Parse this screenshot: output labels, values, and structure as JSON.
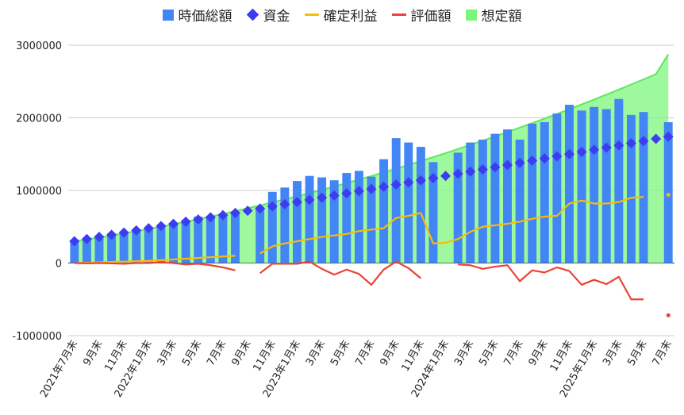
{
  "chart_data": {
    "type": "bar",
    "title": "",
    "xlabel": "",
    "ylabel": "",
    "ylim": [
      -1000000,
      3000000
    ],
    "yticks": [
      3000000,
      2000000,
      1000000,
      0,
      -1000000
    ],
    "y_tick_labels": [
      "3000000",
      "2000000",
      "1000000",
      "0",
      "-1000000"
    ],
    "grid": true,
    "legend_position": "top",
    "x_tick_labels": [
      "2021年7月末",
      "9月末",
      "11月末",
      "2022年1月末",
      "3月末",
      "5月末",
      "7月末",
      "9月末",
      "11月末",
      "2023年1月末",
      "3月末",
      "5月末",
      "7月末",
      "9月末",
      "11月末",
      "2024年1月末",
      "3月末",
      "5月末",
      "7月末",
      "9月末",
      "11月末",
      "2025年1月末",
      "3月末",
      "5月末",
      "7月末"
    ],
    "categories": [
      "2021-07",
      "2021-08",
      "2021-09",
      "2021-10",
      "2021-11",
      "2021-12",
      "2022-01",
      "2022-02",
      "2022-03",
      "2022-04",
      "2022-05",
      "2022-06",
      "2022-07",
      "2022-08",
      "2022-09",
      "2022-10",
      "2022-11",
      "2022-12",
      "2023-01",
      "2023-02",
      "2023-03",
      "2023-04",
      "2023-05",
      "2023-06",
      "2023-07",
      "2023-08",
      "2023-09",
      "2023-10",
      "2023-11",
      "2023-12",
      "2024-01",
      "2024-02",
      "2024-03",
      "2024-04",
      "2024-05",
      "2024-06",
      "2024-07",
      "2024-08",
      "2024-09",
      "2024-10",
      "2024-11",
      "2024-12",
      "2025-01",
      "2025-02",
      "2025-03",
      "2025-04",
      "2025-05",
      "2025-06",
      "2025-07"
    ],
    "series": [
      {
        "name": "時価総額",
        "kind": "bar",
        "color": "#4285f4",
        "values": [
          300000,
          330000,
          360000,
          380000,
          420000,
          450000,
          480000,
          510000,
          540000,
          590000,
          640000,
          650000,
          670000,
          690000,
          null,
          760000,
          980000,
          1040000,
          1130000,
          1200000,
          1180000,
          1140000,
          1240000,
          1270000,
          1190000,
          1430000,
          1720000,
          1660000,
          1600000,
          1390000,
          null,
          1520000,
          1660000,
          1700000,
          1780000,
          1840000,
          1700000,
          1920000,
          1940000,
          2060000,
          2180000,
          2100000,
          2150000,
          2120000,
          2260000,
          2040000,
          2080000,
          null,
          1940000
        ]
      },
      {
        "name": "資金",
        "kind": "scatter",
        "marker": "diamond",
        "color": "#3c3cf5",
        "values": [
          300000,
          330000,
          360000,
          390000,
          420000,
          450000,
          480000,
          510000,
          540000,
          570000,
          600000,
          630000,
          660000,
          690000,
          720000,
          750000,
          780000,
          810000,
          840000,
          870000,
          900000,
          930000,
          960000,
          990000,
          1020000,
          1050000,
          1080000,
          1110000,
          1140000,
          1170000,
          1200000,
          1230000,
          1260000,
          1290000,
          1320000,
          1350000,
          1380000,
          1410000,
          1440000,
          1470000,
          1500000,
          1530000,
          1560000,
          1590000,
          1620000,
          1650000,
          1680000,
          1710000,
          1740000
        ]
      },
      {
        "name": "確定利益",
        "kind": "line",
        "color": "#fbbc04",
        "values": [
          0,
          5000,
          10000,
          15000,
          20000,
          25000,
          30000,
          40000,
          50000,
          60000,
          70000,
          80000,
          90000,
          100000,
          null,
          130000,
          230000,
          270000,
          300000,
          330000,
          360000,
          380000,
          400000,
          440000,
          460000,
          480000,
          620000,
          650000,
          690000,
          270000,
          280000,
          330000,
          430000,
          500000,
          520000,
          540000,
          570000,
          610000,
          640000,
          650000,
          820000,
          860000,
          820000,
          820000,
          840000,
          900000,
          910000,
          null,
          940000
        ]
      },
      {
        "name": "評価額",
        "kind": "line",
        "color": "#ea4335",
        "values": [
          0,
          -5000,
          0,
          -5000,
          -10000,
          0,
          0,
          10000,
          0,
          -20000,
          -10000,
          -30000,
          -60000,
          -100000,
          null,
          -140000,
          -10000,
          -10000,
          -10000,
          20000,
          -80000,
          -160000,
          -90000,
          -150000,
          -300000,
          -90000,
          20000,
          -70000,
          -210000,
          null,
          null,
          -20000,
          -30000,
          -80000,
          -50000,
          -30000,
          -250000,
          -100000,
          -130000,
          -60000,
          -110000,
          -300000,
          -230000,
          -290000,
          -190000,
          -500000,
          -500000,
          null,
          -720000
        ]
      },
      {
        "name": "想定額",
        "kind": "area",
        "color": "#7df57d",
        "values": [
          300000,
          325000,
          352000,
          380000,
          409000,
          439000,
          470000,
          502000,
          535000,
          569000,
          604000,
          640000,
          677000,
          715000,
          754000,
          794000,
          835000,
          877000,
          920000,
          964000,
          1009000,
          1055000,
          1102000,
          1150000,
          1199000,
          1249000,
          1300000,
          1352000,
          1405000,
          1459000,
          1514000,
          1570000,
          1627000,
          1685000,
          1744000,
          1804000,
          1865000,
          1927000,
          1990000,
          2054000,
          2119000,
          2185000,
          2252000,
          2320000,
          2389000,
          2459000,
          2530000,
          2602000,
          2875000
        ]
      }
    ]
  }
}
